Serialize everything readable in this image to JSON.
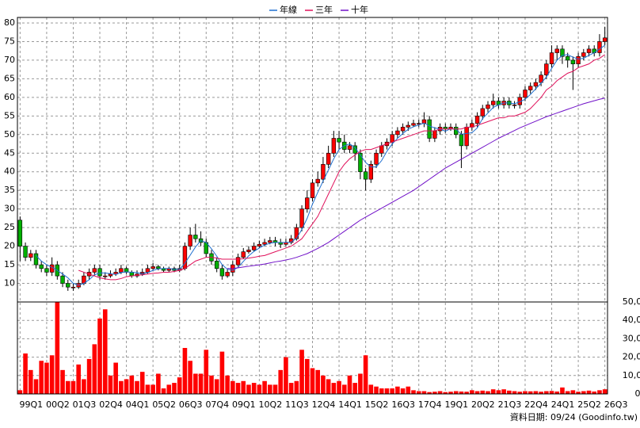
{
  "chart_data": {
    "type": "candlestick",
    "categories": [
      "99Q1",
      null,
      null,
      null,
      null,
      "00Q2",
      null,
      null,
      null,
      null,
      "01Q3",
      null,
      null,
      null,
      null,
      "02Q4",
      null,
      null,
      null,
      null,
      "04Q1",
      null,
      null,
      null,
      null,
      "05Q2",
      null,
      null,
      null,
      null,
      "06Q3",
      null,
      null,
      null,
      null,
      "07Q4",
      null,
      null,
      null,
      null,
      "09Q1",
      null,
      null,
      null,
      null,
      "10Q2",
      null,
      null,
      null,
      null,
      "11Q3",
      null,
      null,
      null,
      null,
      "12Q4",
      null,
      null,
      null,
      null,
      "14Q1",
      null,
      null,
      null,
      null,
      "15Q2",
      null,
      null,
      null,
      null,
      "16Q3",
      null,
      null,
      null,
      null,
      "17Q4",
      null,
      null,
      null,
      null,
      "19Q1",
      null,
      null,
      null,
      null,
      "20Q2",
      null,
      null,
      null,
      null,
      "21Q3",
      null,
      null,
      null,
      null,
      "22Q4",
      null,
      null,
      null,
      null,
      "24Q1",
      null,
      null,
      null,
      null,
      "25Q2",
      null,
      null,
      null,
      null,
      "26Q3"
    ],
    "open": [
      27,
      20,
      17,
      18,
      15,
      14,
      13,
      15,
      12,
      10,
      9,
      9,
      10,
      12,
      13,
      14,
      12,
      12,
      12.5,
      13,
      14,
      13,
      12,
      12.5,
      13,
      14,
      14.5,
      14,
      13.5,
      14,
      13.5,
      14,
      20,
      23,
      22,
      21,
      18,
      16,
      14,
      12,
      13,
      15,
      17,
      18.5,
      19,
      20,
      20.5,
      21,
      21.5,
      21,
      20.5,
      21,
      22,
      25,
      30,
      33,
      37,
      38,
      42,
      45,
      49,
      48,
      46,
      47,
      45,
      40,
      38,
      42,
      45,
      47,
      48,
      50,
      51,
      52,
      52.5,
      53,
      53,
      54,
      49,
      51,
      52,
      51.5,
      52,
      50,
      47,
      52,
      53,
      55,
      57,
      58,
      59,
      58,
      59,
      58,
      58,
      60,
      62,
      63,
      64,
      66,
      69,
      72,
      73,
      71,
      70,
      69,
      71,
      72,
      73,
      72,
      75
    ],
    "high": [
      28,
      21,
      19,
      19,
      16,
      15,
      17,
      16,
      13,
      11,
      10,
      11,
      13,
      14,
      15,
      15,
      13,
      13.5,
      14,
      15,
      14.5,
      13.5,
      13.5,
      14,
      15,
      15.5,
      15,
      14.5,
      14.5,
      14.5,
      15,
      21,
      25,
      26,
      24,
      22,
      19,
      17,
      15,
      14,
      16,
      18,
      19.5,
      20,
      21,
      21.5,
      22,
      22.5,
      22.5,
      22,
      22,
      23,
      26,
      31,
      35,
      38,
      40,
      44,
      47,
      51,
      51,
      50,
      48,
      48,
      46,
      41,
      43,
      46,
      48,
      49,
      51,
      52,
      53,
      53.5,
      54,
      54,
      56,
      55,
      52,
      53,
      53,
      53,
      53,
      51,
      53,
      54,
      56,
      58,
      59,
      61,
      60,
      60,
      60,
      59,
      61,
      63,
      64,
      65,
      67,
      70,
      74,
      74,
      74,
      72,
      71,
      72,
      73,
      74,
      74,
      77,
      79
    ],
    "low": [
      16,
      16,
      16,
      14,
      13,
      12,
      12,
      11,
      9,
      8,
      8,
      8.5,
      9.5,
      11,
      12,
      11,
      11,
      11.5,
      12,
      12.5,
      12.5,
      11.5,
      11.5,
      12,
      12.5,
      13.5,
      13.5,
      13,
      13,
      13,
      13,
      13.5,
      19,
      21,
      20,
      17,
      15,
      13,
      11,
      11.5,
      12,
      14.5,
      16.5,
      18,
      18.5,
      19.5,
      20,
      20.5,
      20,
      19.5,
      20,
      20.5,
      21.5,
      24,
      29,
      32,
      36,
      37,
      41,
      44,
      46,
      45,
      45,
      43,
      38,
      35,
      37,
      41,
      44,
      46,
      47,
      49,
      50,
      51,
      52,
      52,
      52,
      48,
      48,
      50,
      50.5,
      51,
      49,
      41,
      46,
      51,
      52,
      54,
      56,
      57,
      57,
      57,
      57,
      57,
      57,
      59,
      61,
      62,
      63,
      65,
      68,
      70,
      69,
      68,
      62,
      68,
      70,
      71,
      71,
      71,
      74
    ],
    "close": [
      20,
      17,
      18,
      15,
      14,
      13,
      15,
      12,
      10,
      9,
      9,
      10,
      12,
      13,
      14,
      12,
      12,
      12.5,
      13,
      14,
      13,
      12,
      12.5,
      13,
      14,
      14.5,
      14,
      13.5,
      14,
      13.5,
      14,
      20,
      23,
      22,
      21,
      18,
      16,
      14,
      12,
      13,
      15,
      17,
      18.5,
      19,
      20,
      20.5,
      21,
      21.5,
      21,
      20.5,
      21,
      22,
      25,
      30,
      33,
      37,
      38,
      42,
      45,
      49,
      48,
      46,
      47,
      45,
      40,
      38,
      42,
      45,
      47,
      48,
      50,
      51,
      52,
      52.5,
      53,
      53,
      54,
      49,
      51,
      52,
      51.5,
      52,
      50,
      47,
      52,
      53,
      55,
      57,
      58,
      59,
      58,
      59,
      58,
      58,
      60,
      62,
      63,
      64,
      66,
      69,
      72,
      73,
      71,
      70,
      69,
      71,
      72,
      73,
      72,
      75,
      76
    ],
    "up_color": "#ff0000",
    "down_color": "#00b000",
    "series": [
      {
        "name": "年線",
        "color": "#1e6fd0",
        "values": [
          null,
          null,
          null,
          17.5,
          16,
          15,
          14.3,
          13.5,
          12.5,
          11.5,
          10,
          9.5,
          10,
          11,
          12.3,
          12.8,
          12.8,
          12.6,
          12.4,
          12.9,
          13.1,
          13,
          12.9,
          12.6,
          12.9,
          13.5,
          13.9,
          14,
          14,
          13.8,
          13.8,
          15.4,
          17.6,
          19.8,
          21.5,
          21,
          19.3,
          17.3,
          15,
          13.8,
          13.5,
          14.3,
          15.9,
          17.4,
          18.6,
          19.5,
          20.3,
          20.8,
          21,
          21,
          21,
          21.1,
          22.1,
          24.5,
          27.5,
          31.3,
          34.5,
          37.5,
          40.5,
          43.5,
          46,
          47,
          47.5,
          46.5,
          44.5,
          42.5,
          41.3,
          41.3,
          43,
          45.5,
          47.5,
          49,
          50.3,
          51.4,
          52.1,
          52.6,
          53.1,
          52.3,
          51.8,
          51.5,
          50.9,
          51.6,
          51.4,
          50.1,
          50.3,
          50.5,
          51.8,
          54.3,
          55.8,
          57.3,
          58,
          58.5,
          58.5,
          58.3,
          58.8,
          59.5,
          60.8,
          62.3,
          63.8,
          65.5,
          67.8,
          70,
          71.3,
          71.5,
          70.8,
          70.3,
          70.5,
          71.3,
          72,
          73,
          74
        ]
      },
      {
        "name": "三年",
        "color": "#e0105a",
        "values": [
          null,
          null,
          null,
          null,
          null,
          null,
          null,
          null,
          null,
          null,
          null,
          13.5,
          13,
          12.5,
          12,
          11.5,
          11.2,
          11,
          11,
          11.3,
          11.8,
          12,
          12.2,
          12.3,
          12.5,
          12.7,
          12.8,
          13,
          13,
          13.2,
          13.5,
          14,
          15,
          16,
          16.5,
          17,
          17,
          16.8,
          16.5,
          16.5,
          16.5,
          16.5,
          16.6,
          16.8,
          17,
          17.3,
          17.5,
          18,
          18.5,
          19,
          19.5,
          20,
          21,
          22,
          24,
          26,
          28,
          31,
          34,
          37,
          40,
          42,
          43.5,
          44.5,
          45.5,
          46,
          46,
          46.5,
          47,
          47.5,
          48,
          48.5,
          49,
          49.5,
          50,
          50.5,
          51,
          51,
          51,
          51.5,
          51.5,
          51.5,
          51.5,
          51.5,
          52,
          52,
          52.5,
          53,
          53.5,
          54,
          54.5,
          54.5,
          55,
          55,
          55.5,
          56,
          57,
          58.5,
          60,
          62,
          63,
          64.5,
          65.5,
          66.5,
          67,
          68,
          68.5,
          69,
          70,
          70.5,
          71.5
        ]
      },
      {
        "name": "十年",
        "color": "#7010c8",
        "values": [
          null,
          null,
          null,
          null,
          null,
          null,
          null,
          null,
          null,
          null,
          null,
          null,
          null,
          null,
          null,
          null,
          null,
          null,
          null,
          null,
          null,
          null,
          null,
          null,
          null,
          null,
          null,
          null,
          null,
          null,
          null,
          null,
          null,
          null,
          null,
          null,
          null,
          null,
          null,
          14,
          14,
          14.2,
          14.4,
          14.6,
          14.8,
          15,
          15.2,
          15.5,
          15.8,
          16,
          16.3,
          16.6,
          17,
          17.5,
          18,
          18.7,
          19.4,
          20.2,
          21,
          22,
          23,
          24,
          25,
          26,
          27,
          27.8,
          28.6,
          29.4,
          30.2,
          31,
          31.8,
          32.6,
          33.4,
          34.2,
          35,
          36,
          37,
          38,
          39,
          40,
          41,
          41.8,
          42.6,
          43.4,
          44.2,
          45,
          45.8,
          46.6,
          47.4,
          48.2,
          49,
          49.7,
          50.4,
          51.1,
          51.8,
          52.4,
          53,
          53.6,
          54.2,
          54.8,
          55.3,
          55.8,
          56.3,
          56.8,
          57.3,
          57.8,
          58.3,
          58.7,
          59.1,
          59.5,
          59.8
        ]
      }
    ],
    "ylim": [
      5,
      80
    ],
    "yticks": [
      10,
      15,
      20,
      25,
      30,
      35,
      40,
      45,
      50,
      55,
      60,
      65,
      70,
      75,
      80
    ],
    "grid": true,
    "volume": {
      "type": "bar",
      "color": "#ff0000",
      "values": [
        2000,
        22000,
        13000,
        8000,
        18000,
        17000,
        21000,
        50000,
        13000,
        7000,
        7000,
        16000,
        8000,
        19000,
        27000,
        41000,
        46000,
        10000,
        17000,
        7000,
        8000,
        10000,
        7000,
        12000,
        5000,
        5000,
        11000,
        3000,
        5000,
        6000,
        9000,
        25000,
        18000,
        11000,
        11000,
        24000,
        10000,
        8000,
        23000,
        10000,
        7000,
        6000,
        7000,
        5000,
        6000,
        5000,
        7000,
        5000,
        5000,
        13000,
        20000,
        6000,
        7000,
        24000,
        19000,
        14000,
        13000,
        10000,
        8000,
        6000,
        7000,
        5000,
        10000,
        6000,
        11000,
        21000,
        5000,
        4000,
        3000,
        3000,
        3000,
        4000,
        3000,
        4000,
        2000,
        1500,
        1500,
        1000,
        1200,
        1500,
        1000,
        1200,
        1500,
        1300,
        1200,
        2000,
        1500,
        1800,
        1500,
        2500,
        2000,
        2500,
        1800,
        1500,
        1200,
        1500,
        1400,
        1500,
        1200,
        1500,
        1600,
        1300,
        3500,
        1500,
        2000,
        1200,
        1500,
        1800,
        1300,
        2000,
        2500
      ],
      "ylim": [
        0,
        50000
      ],
      "yticks": [
        0,
        {
          "value": 10000,
          "label": "10,000"
        },
        {
          "value": 20000,
          "label": "20,000"
        },
        {
          "value": 30000,
          "label": "30,000"
        },
        {
          "value": 40000,
          "label": "40,000"
        },
        {
          "value": 50000,
          "label": "50,000"
        }
      ]
    },
    "source": "資料日期: 09/24  (Goodinfo.tw)"
  }
}
